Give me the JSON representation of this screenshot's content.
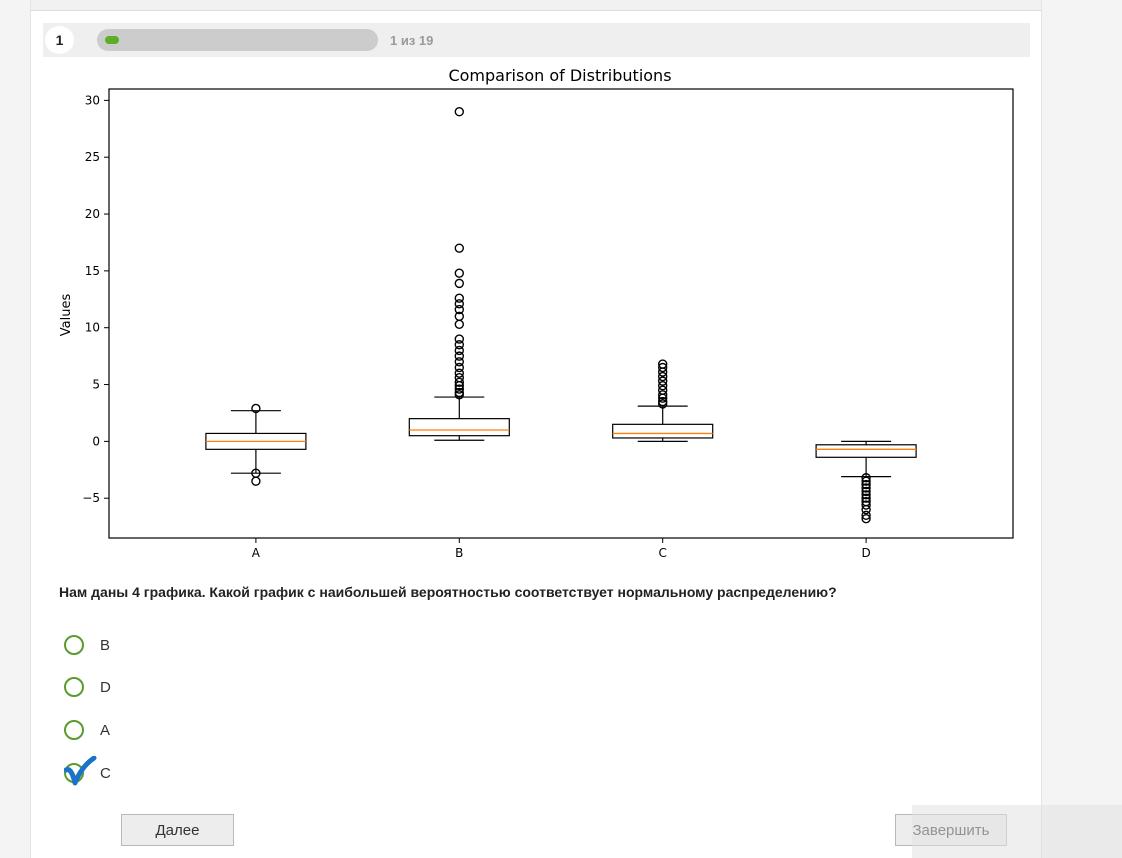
{
  "progress": {
    "question_number": "1",
    "counter_text": "1 из 19",
    "fraction": 0.05
  },
  "chart_data": {
    "type": "boxplot",
    "title": "Comparison of Distributions",
    "ylabel": "Values",
    "xlabel": "",
    "ylim": [
      -8.5,
      31
    ],
    "yticks": [
      -5,
      0,
      5,
      10,
      15,
      20,
      25,
      30
    ],
    "ytick_labels": [
      "−5",
      "0",
      "5",
      "10",
      "15",
      "20",
      "25",
      "30"
    ],
    "categories": [
      "A",
      "B",
      "C",
      "D"
    ],
    "boxes": [
      {
        "category": "A",
        "whisker_low": -2.8,
        "q1": -0.7,
        "median": 0.0,
        "q3": 0.7,
        "whisker_high": 2.7,
        "outliers": [
          2.9,
          -2.8,
          -3.5
        ]
      },
      {
        "category": "B",
        "whisker_low": 0.1,
        "q1": 0.5,
        "median": 1.0,
        "q3": 2.0,
        "whisker_high": 3.9,
        "outliers": [
          29.0,
          17.0,
          14.8,
          13.9,
          12.6,
          12.1,
          11.6,
          11.0,
          10.3,
          9.0,
          8.5,
          8.0,
          7.5,
          7.0,
          6.5,
          6.0,
          5.6,
          5.2,
          4.9,
          4.6,
          4.3,
          4.1
        ]
      },
      {
        "category": "C",
        "whisker_low": 0.0,
        "q1": 0.3,
        "median": 0.7,
        "q3": 1.5,
        "whisker_high": 3.1,
        "outliers": [
          6.8,
          6.5,
          6.1,
          5.7,
          5.3,
          4.9,
          4.5,
          4.1,
          3.8,
          3.5,
          3.3
        ]
      },
      {
        "category": "D",
        "whisker_low": -3.1,
        "q1": -1.4,
        "median": -0.7,
        "q3": -0.3,
        "whisker_high": 0.0,
        "outliers": [
          -3.2,
          -3.5,
          -3.8,
          -4.1,
          -4.4,
          -4.7,
          -5.0,
          -5.3,
          -5.6,
          -6.0,
          -6.5,
          -6.8
        ]
      }
    ],
    "colors": {
      "box": "#000000",
      "median": "#ff7f0e"
    },
    "grid": false
  },
  "question": {
    "text": "Нам даны 4 графика. Какой график с наибольшей вероятностью соответствует нормальному распределению?"
  },
  "options": [
    {
      "label": "B",
      "selected": false
    },
    {
      "label": "D",
      "selected": false
    },
    {
      "label": "A",
      "selected": false
    },
    {
      "label": "C",
      "selected": true
    }
  ],
  "buttons": {
    "next_label": "Далее",
    "finish_label": "Завершить"
  },
  "colors": {
    "accent_green": "#5cae27",
    "radio_green": "#5b9b2d",
    "check_blue": "#1a73c8"
  }
}
